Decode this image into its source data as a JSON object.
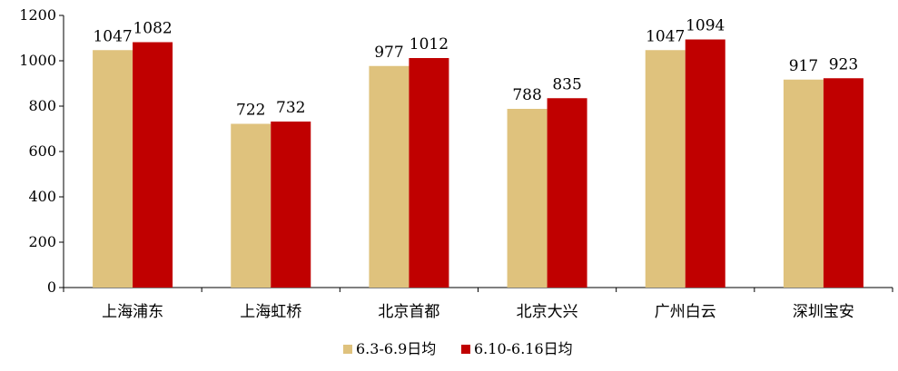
{
  "chart_data": {
    "type": "bar",
    "title": "",
    "xlabel": "",
    "ylabel": "",
    "ylim": [
      0,
      1200
    ],
    "yticks": [
      0,
      200,
      400,
      600,
      800,
      1000,
      1200
    ],
    "grid": false,
    "legend_position": "bottom",
    "categories": [
      "上海浦东",
      "上海虹桥",
      "北京首都",
      "北京大兴",
      "广州白云",
      "深圳宝安"
    ],
    "series": [
      {
        "name": "6.3-6.9日均",
        "color": "#DFC27D",
        "values": [
          1047,
          722,
          977,
          788,
          1047,
          917
        ]
      },
      {
        "name": "6.10-6.16日均",
        "color": "#C00000",
        "values": [
          1082,
          732,
          1012,
          835,
          1094,
          923
        ]
      }
    ]
  }
}
